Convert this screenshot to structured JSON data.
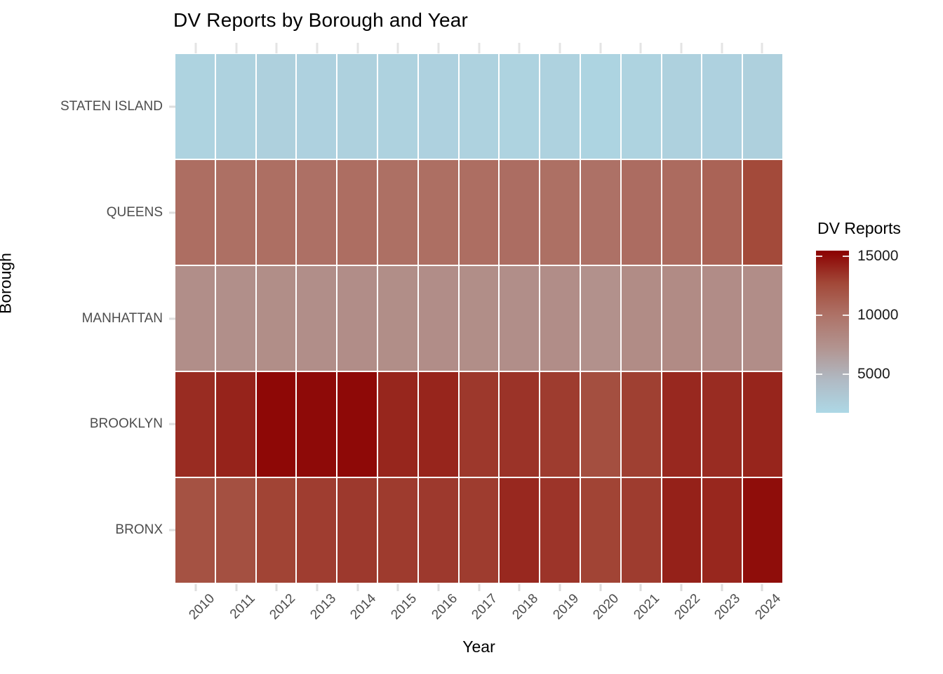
{
  "title": "DV Reports by Borough and Year",
  "x_axis": {
    "label": "Year"
  },
  "y_axis": {
    "label": "Borough"
  },
  "legend": {
    "title": "DV Reports",
    "tick_labels": [
      "15000",
      "10000",
      "5000"
    ],
    "tick_values": [
      15000,
      10000,
      5000
    ]
  },
  "colors": {
    "scale_low": "#ADD8E6",
    "scale_high": "#8B0000",
    "gradient_stops": [
      {
        "t": 0.0,
        "hex": "#ADD8E6"
      },
      {
        "t": 0.2,
        "hex": "#B0BAC4"
      },
      {
        "t": 0.4,
        "hex": "#B29490"
      },
      {
        "t": 0.6,
        "hex": "#AE7368"
      },
      {
        "t": 0.8,
        "hex": "#A24838"
      },
      {
        "t": 1.0,
        "hex": "#8B0000"
      }
    ],
    "tile_border": "#FFFFFF",
    "grid_stub": "#E4E4E4",
    "axis_text": "#4D4D4D",
    "title_text": "#000000"
  },
  "chart_data": {
    "type": "heatmap",
    "title": "DV Reports by Borough and Year",
    "xlabel": "Year",
    "ylabel": "Borough",
    "x": [
      "2010",
      "2011",
      "2012",
      "2013",
      "2014",
      "2015",
      "2016",
      "2017",
      "2018",
      "2019",
      "2020",
      "2021",
      "2022",
      "2023",
      "2024"
    ],
    "categories_y": [
      "STATEN ISLAND",
      "QUEENS",
      "MANHATTAN",
      "BROOKLYN",
      "BRONX"
    ],
    "series": [
      {
        "name": "STATEN ISLAND",
        "values": [
          2200,
          2250,
          2400,
          2300,
          2350,
          2250,
          2300,
          2250,
          2200,
          2250,
          2100,
          2200,
          2350,
          2300,
          2400
        ]
      },
      {
        "name": "QUEENS",
        "values": [
          10300,
          10200,
          10250,
          10150,
          10300,
          10200,
          10250,
          10300,
          10350,
          10200,
          10100,
          10400,
          10500,
          11000,
          12600
        ]
      },
      {
        "name": "MANHATTAN",
        "values": [
          7700,
          7650,
          7750,
          7700,
          7800,
          7750,
          7800,
          7750,
          7700,
          7800,
          7500,
          7900,
          7950,
          7850,
          7800
        ]
      },
      {
        "name": "BROOKLYN",
        "values": [
          13800,
          14150,
          15200,
          15100,
          15150,
          14050,
          14100,
          13350,
          13550,
          13200,
          12300,
          13050,
          13950,
          13800,
          14100
        ]
      },
      {
        "name": "BRONX",
        "values": [
          12100,
          12200,
          12900,
          13150,
          13300,
          13250,
          13300,
          13200,
          13950,
          13500,
          12900,
          13200,
          14250,
          14000,
          15000
        ]
      }
    ],
    "color_domain": [
      1700,
      15500
    ],
    "legend_position": "right",
    "grid": "minimal-theme, light gray tick stubs at category centers"
  }
}
